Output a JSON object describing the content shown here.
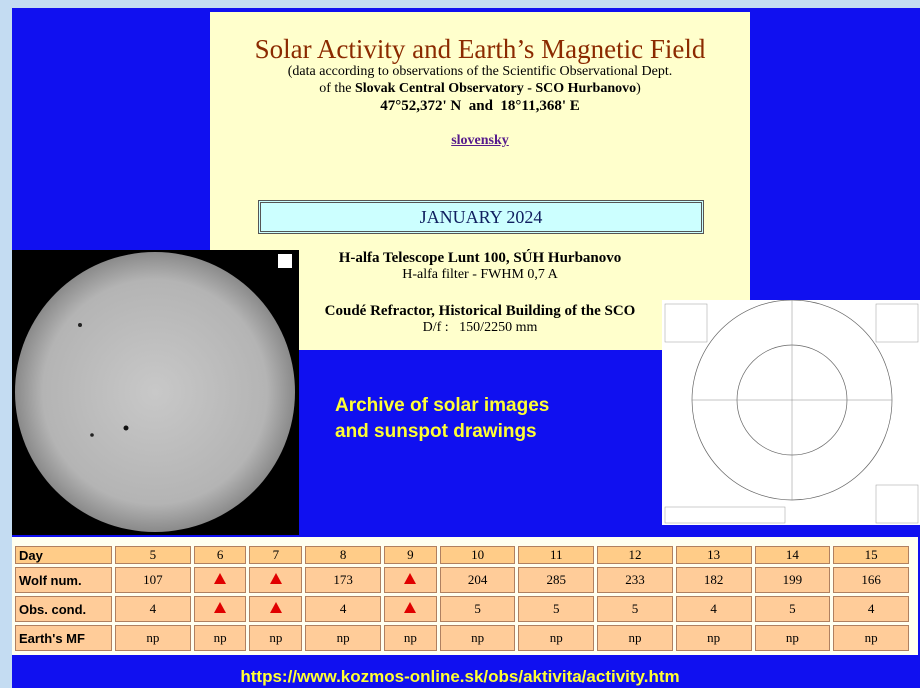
{
  "header": {
    "title": "Solar Activity and Earth’s Magnetic Field",
    "subtitle": "(data according to observations of the Scientific Observational Dept.",
    "subtitle_prefix": "of the ",
    "observatory": "Slovak Central Observatory - SCO Hurbanovo",
    "subtitle_suffix": ")",
    "coordinates": "47°52,372' N  and  18°11,368' E"
  },
  "language_link": "slovensky",
  "month": "JANUARY 2024",
  "instruments": [
    {
      "name": "H-alfa Telescope Lunt 100, SÚH Hurbanovo",
      "detail": "H-alfa filter - FWHM 0,7 A"
    },
    {
      "name": "Coudé Refractor, Historical Building of the SCO",
      "detail": "D/f :   150/2250 mm"
    }
  ],
  "archive_link": [
    "Archive of solar images",
    "and sunspot drawings"
  ],
  "table": {
    "row_labels": [
      "Day",
      "Wolf num.",
      "Obs. cond.",
      "Earth's MF"
    ],
    "rows": [
      [
        5,
        6,
        7,
        8,
        9,
        10,
        11,
        12,
        13,
        14,
        15
      ],
      [
        107,
        null,
        null,
        173,
        null,
        204,
        285,
        233,
        182,
        199,
        166
      ],
      [
        4,
        null,
        null,
        4,
        null,
        5,
        5,
        5,
        4,
        5,
        4
      ],
      [
        "np",
        "np",
        "np",
        "np",
        "np",
        "np",
        "np",
        "np",
        "np",
        "np",
        "np"
      ]
    ]
  },
  "url": "https://www.kozmos-online.sk/obs/aktivita/activity.htm"
}
